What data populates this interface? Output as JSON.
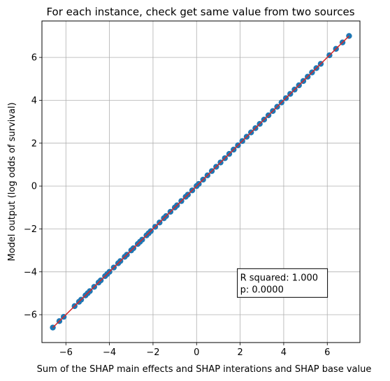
{
  "chart_data": {
    "type": "scatter",
    "title": "For each instance, check get same value from two sources",
    "xlabel": "Sum of the SHAP main effects and SHAP interations and SHAP base value",
    "ylabel": "Model output (log odds of survival)",
    "xlim": [
      -7.1,
      7.5
    ],
    "ylim": [
      -7.3,
      7.7
    ],
    "xticks": [
      -6,
      -4,
      -2,
      0,
      2,
      4,
      6
    ],
    "yticks": [
      -6,
      -4,
      -2,
      0,
      2,
      4,
      6
    ],
    "xtick_labels": [
      "−6",
      "−4",
      "−2",
      "0",
      "2",
      "4",
      "6"
    ],
    "ytick_labels": [
      "−6",
      "−4",
      "−2",
      "0",
      "2",
      "4",
      "6"
    ],
    "grid": true,
    "series": [
      {
        "marker_color": "#1f77b4",
        "points": [
          [
            -6.6,
            -6.6
          ],
          [
            -6.3,
            -6.3
          ],
          [
            -6.1,
            -6.1
          ],
          [
            -5.6,
            -5.6
          ],
          [
            -5.4,
            -5.4
          ],
          [
            -5.3,
            -5.3
          ],
          [
            -5.1,
            -5.1
          ],
          [
            -5.0,
            -5.0
          ],
          [
            -4.9,
            -4.9
          ],
          [
            -4.7,
            -4.7
          ],
          [
            -4.5,
            -4.5
          ],
          [
            -4.4,
            -4.4
          ],
          [
            -4.2,
            -4.2
          ],
          [
            -4.1,
            -4.1
          ],
          [
            -4.0,
            -4.0
          ],
          [
            -3.8,
            -3.8
          ],
          [
            -3.6,
            -3.6
          ],
          [
            -3.5,
            -3.5
          ],
          [
            -3.3,
            -3.3
          ],
          [
            -3.2,
            -3.2
          ],
          [
            -3.0,
            -3.0
          ],
          [
            -2.9,
            -2.9
          ],
          [
            -2.7,
            -2.7
          ],
          [
            -2.6,
            -2.6
          ],
          [
            -2.5,
            -2.5
          ],
          [
            -2.3,
            -2.3
          ],
          [
            -2.2,
            -2.2
          ],
          [
            -2.1,
            -2.1
          ],
          [
            -1.9,
            -1.9
          ],
          [
            -1.7,
            -1.7
          ],
          [
            -1.5,
            -1.5
          ],
          [
            -1.4,
            -1.4
          ],
          [
            -1.2,
            -1.2
          ],
          [
            -1.0,
            -1.0
          ],
          [
            -0.9,
            -0.9
          ],
          [
            -0.7,
            -0.7
          ],
          [
            -0.5,
            -0.5
          ],
          [
            -0.4,
            -0.4
          ],
          [
            -0.2,
            -0.2
          ],
          [
            0.0,
            0.0
          ],
          [
            0.1,
            0.1
          ],
          [
            0.3,
            0.3
          ],
          [
            0.5,
            0.5
          ],
          [
            0.7,
            0.7
          ],
          [
            0.9,
            0.9
          ],
          [
            1.1,
            1.1
          ],
          [
            1.3,
            1.3
          ],
          [
            1.5,
            1.5
          ],
          [
            1.7,
            1.7
          ],
          [
            1.9,
            1.9
          ],
          [
            2.1,
            2.1
          ],
          [
            2.3,
            2.3
          ],
          [
            2.5,
            2.5
          ],
          [
            2.7,
            2.7
          ],
          [
            2.9,
            2.9
          ],
          [
            3.1,
            3.1
          ],
          [
            3.3,
            3.3
          ],
          [
            3.5,
            3.5
          ],
          [
            3.7,
            3.7
          ],
          [
            3.9,
            3.9
          ],
          [
            4.1,
            4.1
          ],
          [
            4.3,
            4.3
          ],
          [
            4.5,
            4.5
          ],
          [
            4.7,
            4.7
          ],
          [
            4.9,
            4.9
          ],
          [
            5.1,
            5.1
          ],
          [
            5.3,
            5.3
          ],
          [
            5.5,
            5.5
          ],
          [
            5.7,
            5.7
          ],
          [
            6.1,
            6.1
          ],
          [
            6.4,
            6.4
          ],
          [
            6.7,
            6.7
          ],
          [
            7.0,
            7.0
          ]
        ]
      }
    ],
    "fit_line": {
      "color": "#d62728",
      "x": [
        -6.6,
        7.0
      ],
      "y": [
        -6.6,
        7.0
      ]
    },
    "annotation": {
      "line1": "R squared: 1.000",
      "line2": "p: 0.0000",
      "anchor_x": 2.0,
      "anchor_y": -4.8
    }
  }
}
